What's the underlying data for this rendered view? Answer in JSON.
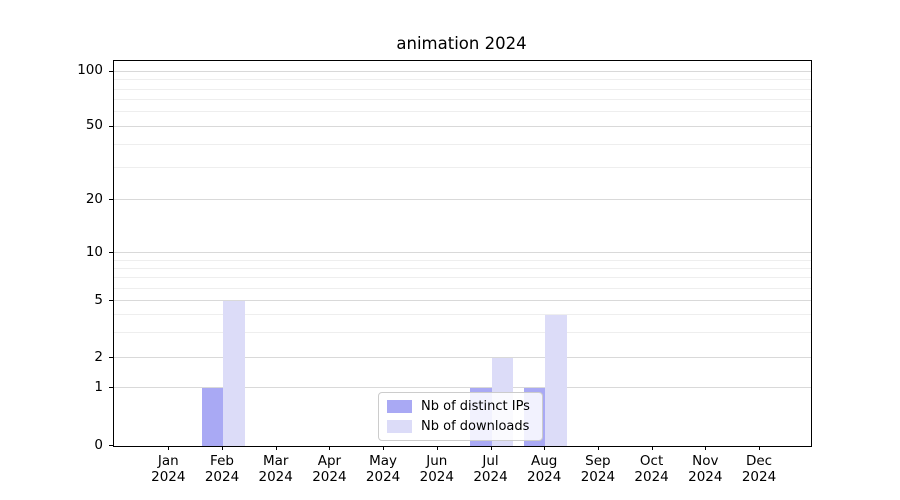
{
  "title": "animation 2024",
  "chart_data": {
    "type": "bar",
    "title": "animation 2024",
    "categories": [
      "Jan 2024",
      "Feb 2024",
      "Mar 2024",
      "Apr 2024",
      "May 2024",
      "Jun 2024",
      "Jul 2024",
      "Aug 2024",
      "Sep 2024",
      "Oct 2024",
      "Nov 2024",
      "Dec 2024"
    ],
    "series": [
      {
        "name": "Nb of distinct IPs",
        "color": "#a9a9f4",
        "values": [
          0,
          1,
          0,
          0,
          0,
          0,
          1,
          1,
          0,
          0,
          0,
          0
        ]
      },
      {
        "name": "Nb of downloads",
        "color": "#dcdcf8",
        "values": [
          0,
          5,
          0,
          0,
          0,
          0,
          2,
          4,
          0,
          0,
          0,
          0
        ]
      }
    ],
    "xlabel": "",
    "ylabel": "",
    "yscale": "log-like with linear region near zero",
    "yticks": [
      0,
      1,
      2,
      5,
      10,
      20,
      50,
      100
    ],
    "yticks_minor": [
      3,
      4,
      6,
      7,
      8,
      9,
      30,
      40,
      60,
      70,
      80,
      90
    ],
    "ylim": [
      0,
      115
    ],
    "grid": true,
    "legend_position": "lower center inside plot",
    "legend": [
      "Nb of distinct IPs",
      "Nb of downloads"
    ]
  }
}
